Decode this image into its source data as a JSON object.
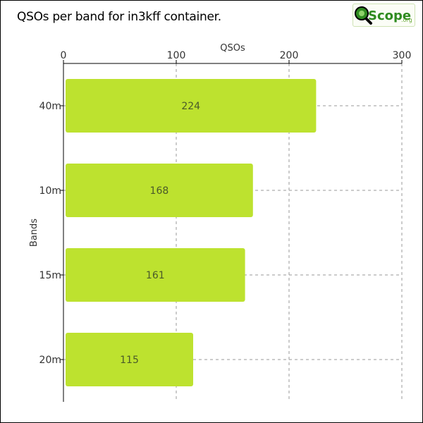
{
  "header": {
    "title": "QSOs per band for in3kff container."
  },
  "logo": {
    "icon": "magnifier-icon",
    "text_main": "Scope",
    "text_suffix": ".org"
  },
  "colors": {
    "bar": "#bde22f",
    "grid": "#9a9a9a",
    "axis": "#000000",
    "logo_green": "#2e8b1f"
  },
  "chart_data": {
    "type": "bar",
    "orientation": "horizontal",
    "title": "QSOs per band for in3kff container.",
    "xlabel": "QSOs",
    "ylabel": "Bands",
    "categories": [
      "40m",
      "10m",
      "15m",
      "20m"
    ],
    "values": [
      224,
      168,
      161,
      115
    ],
    "xlim": [
      0,
      300
    ],
    "xticks": [
      0,
      100,
      200,
      300
    ],
    "x_axis_position": "top",
    "grid": true,
    "data_labels": true
  }
}
